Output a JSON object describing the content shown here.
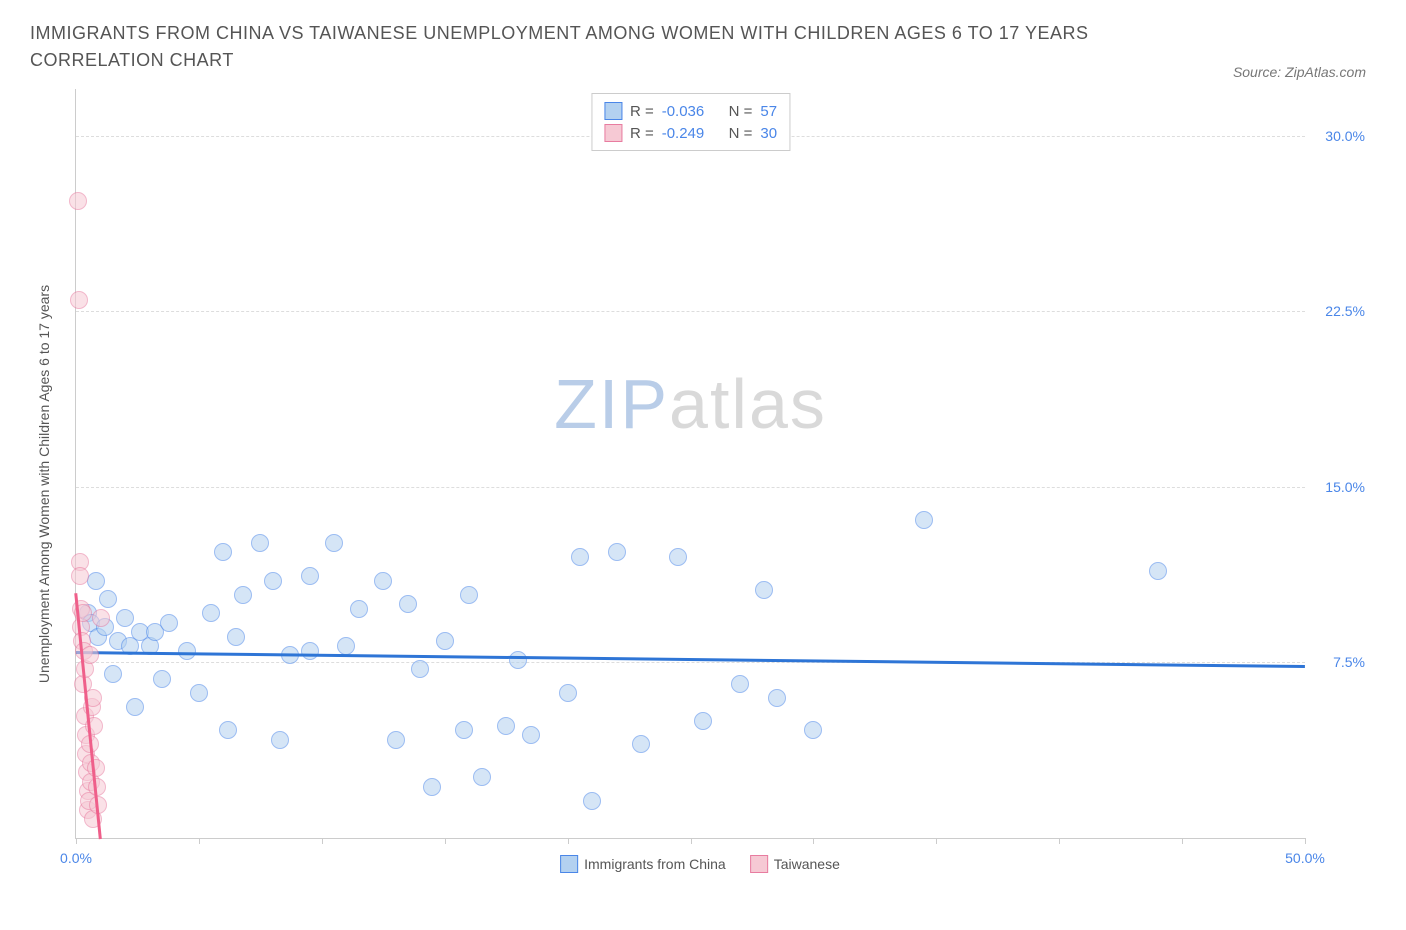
{
  "title": "IMMIGRANTS FROM CHINA VS TAIWANESE UNEMPLOYMENT AMONG WOMEN WITH CHILDREN AGES 6 TO 17 YEARS CORRELATION CHART",
  "source_prefix": "Source: ",
  "source_name": "ZipAtlas.com",
  "watermark_a": "ZIP",
  "watermark_b": "atlas",
  "watermark_color_a": "#b9cde8",
  "watermark_color_b": "#d9d9d9",
  "y_axis_label": "Unemployment Among Women with Children Ages 6 to 17 years",
  "chart": {
    "type": "scatter",
    "background_color": "#ffffff",
    "grid_color": "#dddddd",
    "axis_color": "#cccccc",
    "tick_label_color": "#4a86e8",
    "tick_fontsize": 14,
    "xlim": [
      0,
      50
    ],
    "ylim": [
      0,
      32
    ],
    "x_ticks": [
      0,
      5,
      10,
      15,
      20,
      25,
      30,
      35,
      40,
      45,
      50
    ],
    "x_tick_labels": {
      "0": "0.0%",
      "50": "50.0%"
    },
    "y_ticks": [
      7.5,
      15.0,
      22.5,
      30.0
    ],
    "y_tick_labels": [
      "7.5%",
      "15.0%",
      "22.5%",
      "30.0%"
    ],
    "marker_radius": 9,
    "marker_opacity": 0.55,
    "series": [
      {
        "name": "Immigrants from China",
        "color_fill": "#b3d1f0",
        "color_stroke": "#4a86e8",
        "trend_color": "#2e75d6",
        "trend_width": 2.5,
        "R": "-0.036",
        "N": "57",
        "trend": {
          "x1": 0,
          "y1": 8.0,
          "x2": 50,
          "y2": 7.4
        },
        "points": [
          [
            0.5,
            9.6
          ],
          [
            0.6,
            9.2
          ],
          [
            0.8,
            11.0
          ],
          [
            0.9,
            8.6
          ],
          [
            1.2,
            9.0
          ],
          [
            1.3,
            10.2
          ],
          [
            1.5,
            7.0
          ],
          [
            1.7,
            8.4
          ],
          [
            2.0,
            9.4
          ],
          [
            2.2,
            8.2
          ],
          [
            2.4,
            5.6
          ],
          [
            2.6,
            8.8
          ],
          [
            3.0,
            8.2
          ],
          [
            3.2,
            8.8
          ],
          [
            3.5,
            6.8
          ],
          [
            3.8,
            9.2
          ],
          [
            4.5,
            8.0
          ],
          [
            5.0,
            6.2
          ],
          [
            5.5,
            9.6
          ],
          [
            6.0,
            12.2
          ],
          [
            6.2,
            4.6
          ],
          [
            6.5,
            8.6
          ],
          [
            6.8,
            10.4
          ],
          [
            7.5,
            12.6
          ],
          [
            8.0,
            11.0
          ],
          [
            8.3,
            4.2
          ],
          [
            8.7,
            7.8
          ],
          [
            9.5,
            11.2
          ],
          [
            9.5,
            8.0
          ],
          [
            10.5,
            12.6
          ],
          [
            11.0,
            8.2
          ],
          [
            11.5,
            9.8
          ],
          [
            12.5,
            11.0
          ],
          [
            13.0,
            4.2
          ],
          [
            13.5,
            10.0
          ],
          [
            14.0,
            7.2
          ],
          [
            14.5,
            2.2
          ],
          [
            15.0,
            8.4
          ],
          [
            15.8,
            4.6
          ],
          [
            16.0,
            10.4
          ],
          [
            16.5,
            2.6
          ],
          [
            17.5,
            4.8
          ],
          [
            18.0,
            7.6
          ],
          [
            18.5,
            4.4
          ],
          [
            20.0,
            6.2
          ],
          [
            20.5,
            12.0
          ],
          [
            21.0,
            1.6
          ],
          [
            22.0,
            12.2
          ],
          [
            23.0,
            4.0
          ],
          [
            24.5,
            12.0
          ],
          [
            25.5,
            5.0
          ],
          [
            27.0,
            6.6
          ],
          [
            28.0,
            10.6
          ],
          [
            28.5,
            6.0
          ],
          [
            30.0,
            4.6
          ],
          [
            34.5,
            13.6
          ],
          [
            44.0,
            11.4
          ]
        ]
      },
      {
        "name": "Taiwanese",
        "color_fill": "#f6c9d4",
        "color_stroke": "#e87ca0",
        "trend_color": "#ef5f8a",
        "trend_width": 2.5,
        "R": "-0.249",
        "N": "30",
        "trend": {
          "x1": 0,
          "y1": 10.5,
          "x2": 1.0,
          "y2": 0
        },
        "points": [
          [
            0.1,
            27.2
          ],
          [
            0.12,
            23.0
          ],
          [
            0.15,
            11.8
          ],
          [
            0.18,
            11.2
          ],
          [
            0.2,
            9.8
          ],
          [
            0.22,
            9.0
          ],
          [
            0.25,
            8.4
          ],
          [
            0.28,
            9.6
          ],
          [
            0.3,
            6.6
          ],
          [
            0.32,
            8.0
          ],
          [
            0.35,
            5.2
          ],
          [
            0.38,
            7.2
          ],
          [
            0.4,
            4.4
          ],
          [
            0.42,
            3.6
          ],
          [
            0.45,
            2.8
          ],
          [
            0.48,
            2.0
          ],
          [
            0.5,
            1.2
          ],
          [
            0.52,
            1.6
          ],
          [
            0.55,
            7.8
          ],
          [
            0.58,
            4.0
          ],
          [
            0.6,
            3.2
          ],
          [
            0.62,
            2.4
          ],
          [
            0.65,
            5.6
          ],
          [
            0.68,
            0.8
          ],
          [
            0.7,
            6.0
          ],
          [
            0.75,
            4.8
          ],
          [
            0.8,
            3.0
          ],
          [
            0.85,
            2.2
          ],
          [
            0.9,
            1.4
          ],
          [
            1.0,
            9.4
          ]
        ]
      }
    ]
  },
  "legend_top": {
    "r_label": "R =",
    "n_label": "N ="
  },
  "legend_bottom": [
    {
      "label": "Immigrants from China",
      "fill": "#b3d1f0",
      "stroke": "#4a86e8"
    },
    {
      "label": "Taiwanese",
      "fill": "#f6c9d4",
      "stroke": "#e87ca0"
    }
  ]
}
